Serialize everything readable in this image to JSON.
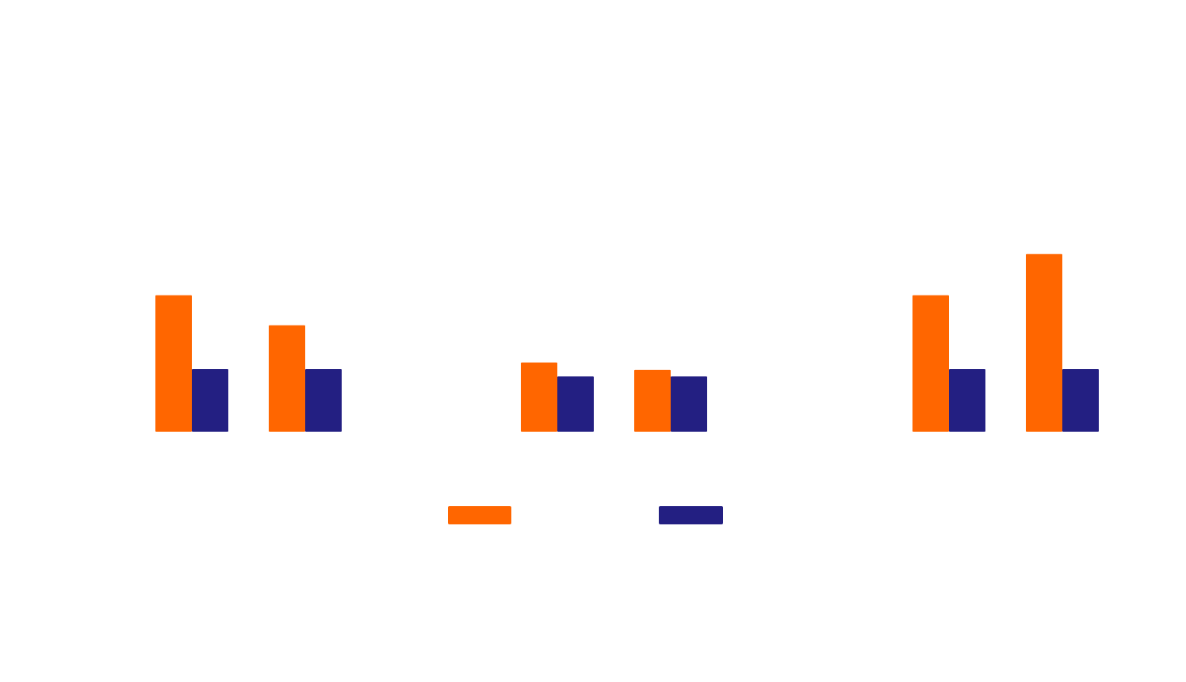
{
  "chart_data": {
    "type": "bar",
    "panels": [
      {
        "categories": [
          "",
          ""
        ],
        "series": [
          {
            "values": [
              2.05,
              1.6
            ]
          },
          {
            "values": [
              0.94,
              0.94
            ]
          }
        ]
      },
      {
        "categories": [
          "",
          ""
        ],
        "series": [
          {
            "values": [
              1.04,
              0.93
            ]
          },
          {
            "values": [
              0.83,
              0.83
            ]
          }
        ]
      },
      {
        "categories": [
          "",
          ""
        ],
        "series": [
          {
            "values": [
              2.05,
              2.67
            ]
          },
          {
            "values": [
              0.94,
              0.94
            ]
          }
        ]
      }
    ],
    "ylim": [
      0,
      3
    ],
    "grid": false,
    "legend": "bottom-center",
    "colors": [
      "#ff6600",
      "#231f82"
    ]
  }
}
